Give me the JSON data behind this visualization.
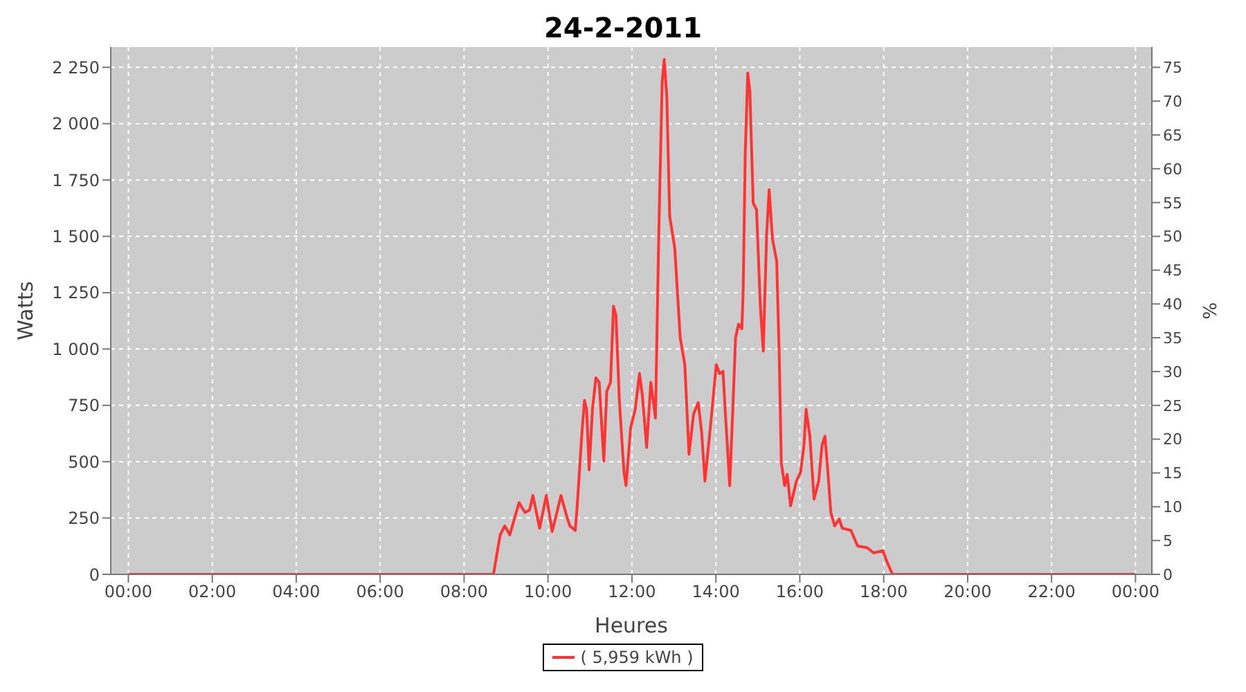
{
  "chart_data": {
    "type": "line",
    "title": "24-2-2011",
    "xlabel": "Heures",
    "ylabel": "Watts",
    "y2label": "%",
    "xlim": [
      -0.42,
      24.39
    ],
    "xticks": [
      {
        "value": 0,
        "label": "00:00"
      },
      {
        "value": 2,
        "label": "02:00"
      },
      {
        "value": 4,
        "label": "04:00"
      },
      {
        "value": 6,
        "label": "06:00"
      },
      {
        "value": 8,
        "label": "08:00"
      },
      {
        "value": 10,
        "label": "10:00"
      },
      {
        "value": 12,
        "label": "12:00"
      },
      {
        "value": 14,
        "label": "14:00"
      },
      {
        "value": 16,
        "label": "16:00"
      },
      {
        "value": 18,
        "label": "18:00"
      },
      {
        "value": 20,
        "label": "20:00"
      },
      {
        "value": 22,
        "label": "22:00"
      },
      {
        "value": 24,
        "label": "00:00"
      }
    ],
    "ylim": [
      0,
      2340
    ],
    "yticks": [
      0,
      250,
      500,
      750,
      {
        "value": 1000,
        "label": "1 000"
      },
      {
        "value": 1250,
        "label": "1 250"
      },
      {
        "value": 1500,
        "label": "1 500"
      },
      {
        "value": 1750,
        "label": "1 750"
      },
      {
        "value": 2000,
        "label": "2 000"
      },
      {
        "value": 2250,
        "label": "2 250"
      }
    ],
    "y2lim": [
      0,
      78
    ],
    "y2ticks": [
      0,
      5,
      10,
      15,
      20,
      25,
      30,
      35,
      40,
      45,
      50,
      55,
      60,
      65,
      70,
      75
    ],
    "grid": true,
    "legend": "bottom",
    "series": [
      {
        "name": "( 5,959 kWh )",
        "color": "#ff3333",
        "x": [
          0,
          8.7,
          8.86,
          8.97,
          9.09,
          9.18,
          9.31,
          9.45,
          9.56,
          9.64,
          9.8,
          9.96,
          10.1,
          10.31,
          10.45,
          10.52,
          10.65,
          10.7,
          10.81,
          10.87,
          10.92,
          10.98,
          11.06,
          11.14,
          11.22,
          11.33,
          11.4,
          11.49,
          11.56,
          11.62,
          11.7,
          11.81,
          11.86,
          11.97,
          12.08,
          12.18,
          12.25,
          12.35,
          12.45,
          12.56,
          12.64,
          12.72,
          12.77,
          12.83,
          12.9,
          13.02,
          13.15,
          13.26,
          13.36,
          13.47,
          13.58,
          13.66,
          13.74,
          13.9,
          14.01,
          14.09,
          14.17,
          14.24,
          14.33,
          14.4,
          14.47,
          14.54,
          14.62,
          14.65,
          14.7,
          14.76,
          14.81,
          14.89,
          14.97,
          15.06,
          15.13,
          15.21,
          15.27,
          15.35,
          15.45,
          15.51,
          15.56,
          15.64,
          15.7,
          15.78,
          15.92,
          16.02,
          16.1,
          16.15,
          16.24,
          16.34,
          16.45,
          16.53,
          16.6,
          16.67,
          16.74,
          16.83,
          16.94,
          17.01,
          17.22,
          17.38,
          17.6,
          17.76,
          17.98,
          18.08,
          18.21,
          24
        ],
        "values": [
          0,
          0,
          175,
          215,
          175,
          235,
          318,
          275,
          285,
          350,
          205,
          350,
          190,
          350,
          255,
          215,
          195,
          315,
          633,
          772,
          733,
          464,
          733,
          872,
          852,
          503,
          812,
          852,
          1190,
          1150,
          772,
          454,
          394,
          652,
          733,
          891,
          792,
          563,
          852,
          693,
          1509,
          2185,
          2285,
          2125,
          1588,
          1449,
          1051,
          931,
          533,
          712,
          762,
          633,
          414,
          712,
          931,
          891,
          901,
          673,
          394,
          712,
          1051,
          1110,
          1090,
          1250,
          1867,
          2225,
          2145,
          1648,
          1618,
          1190,
          991,
          1509,
          1707,
          1488,
          1389,
          971,
          494,
          394,
          444,
          304,
          414,
          454,
          573,
          733,
          613,
          334,
          414,
          573,
          613,
          454,
          275,
          215,
          245,
          205,
          195,
          125,
          119,
          95,
          105,
          55,
          0,
          0
        ]
      }
    ]
  }
}
